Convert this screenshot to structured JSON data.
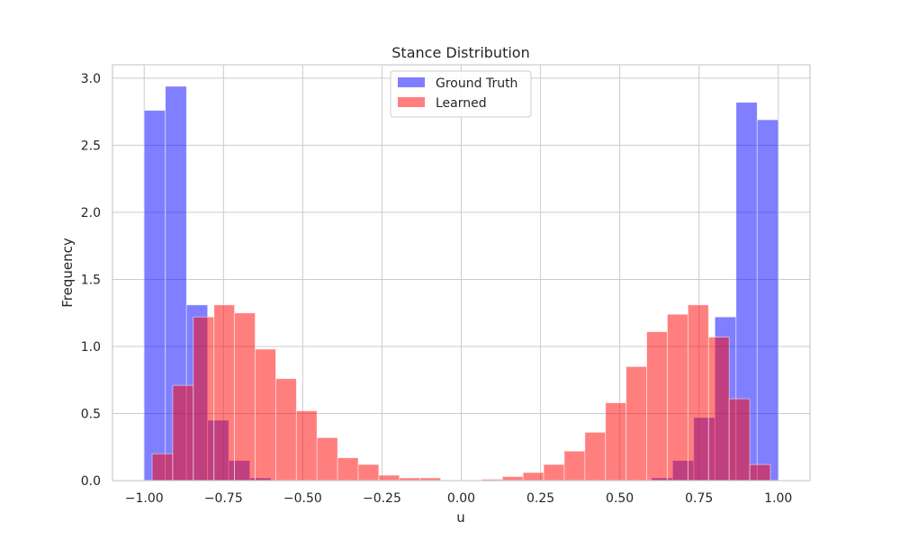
{
  "chart_data": {
    "type": "histogram",
    "title": "Stance Distribution",
    "xlabel": "u",
    "ylabel": "Frequency",
    "xlim": [
      -1.1,
      1.1
    ],
    "ylim": [
      0,
      3.1
    ],
    "xticks": [
      -1.0,
      -0.75,
      -0.5,
      -0.25,
      0.0,
      0.25,
      0.5,
      0.75,
      1.0
    ],
    "xtick_labels": [
      "−1.00",
      "−0.75",
      "−0.50",
      "−0.25",
      "0.00",
      "0.25",
      "0.50",
      "0.75",
      "1.00"
    ],
    "yticks": [
      0.0,
      0.5,
      1.0,
      1.5,
      2.0,
      2.5,
      3.0
    ],
    "ytick_labels": [
      "0.0",
      "0.5",
      "1.0",
      "1.5",
      "2.0",
      "2.5",
      "3.0"
    ],
    "grid": true,
    "legend_position": "top-center",
    "series": [
      {
        "name": "Ground Truth",
        "color": "#0000ff",
        "opacity": 0.5,
        "bin_width": 0.0667,
        "bin_starts": [
          -1.0,
          -0.9333,
          -0.8667,
          -0.8,
          -0.7333,
          -0.6667,
          -0.6,
          0.6,
          0.6667,
          0.7333,
          0.8,
          0.8667,
          0.9333
        ],
        "values": [
          2.76,
          2.94,
          1.31,
          0.45,
          0.15,
          0.02,
          0.0,
          0.02,
          0.15,
          0.47,
          1.22,
          2.82,
          2.69
        ]
      },
      {
        "name": "Learned",
        "color": "#ff0000",
        "opacity": 0.5,
        "bin_width": 0.065,
        "bin_starts": [
          -0.975,
          -0.91,
          -0.845,
          -0.78,
          -0.715,
          -0.65,
          -0.585,
          -0.52,
          -0.455,
          -0.39,
          -0.325,
          -0.26,
          -0.195,
          -0.13,
          -0.065,
          0.0,
          0.065,
          0.13,
          0.195,
          0.26,
          0.325,
          0.39,
          0.455,
          0.52,
          0.585,
          0.65,
          0.715,
          0.78,
          0.845,
          0.91
        ],
        "values": [
          0.2,
          0.71,
          1.22,
          1.31,
          1.25,
          0.98,
          0.76,
          0.52,
          0.32,
          0.17,
          0.12,
          0.04,
          0.02,
          0.02,
          0.0,
          0.0,
          0.01,
          0.03,
          0.06,
          0.12,
          0.22,
          0.36,
          0.58,
          0.85,
          1.11,
          1.24,
          1.31,
          1.07,
          0.61,
          0.12
        ]
      }
    ]
  }
}
